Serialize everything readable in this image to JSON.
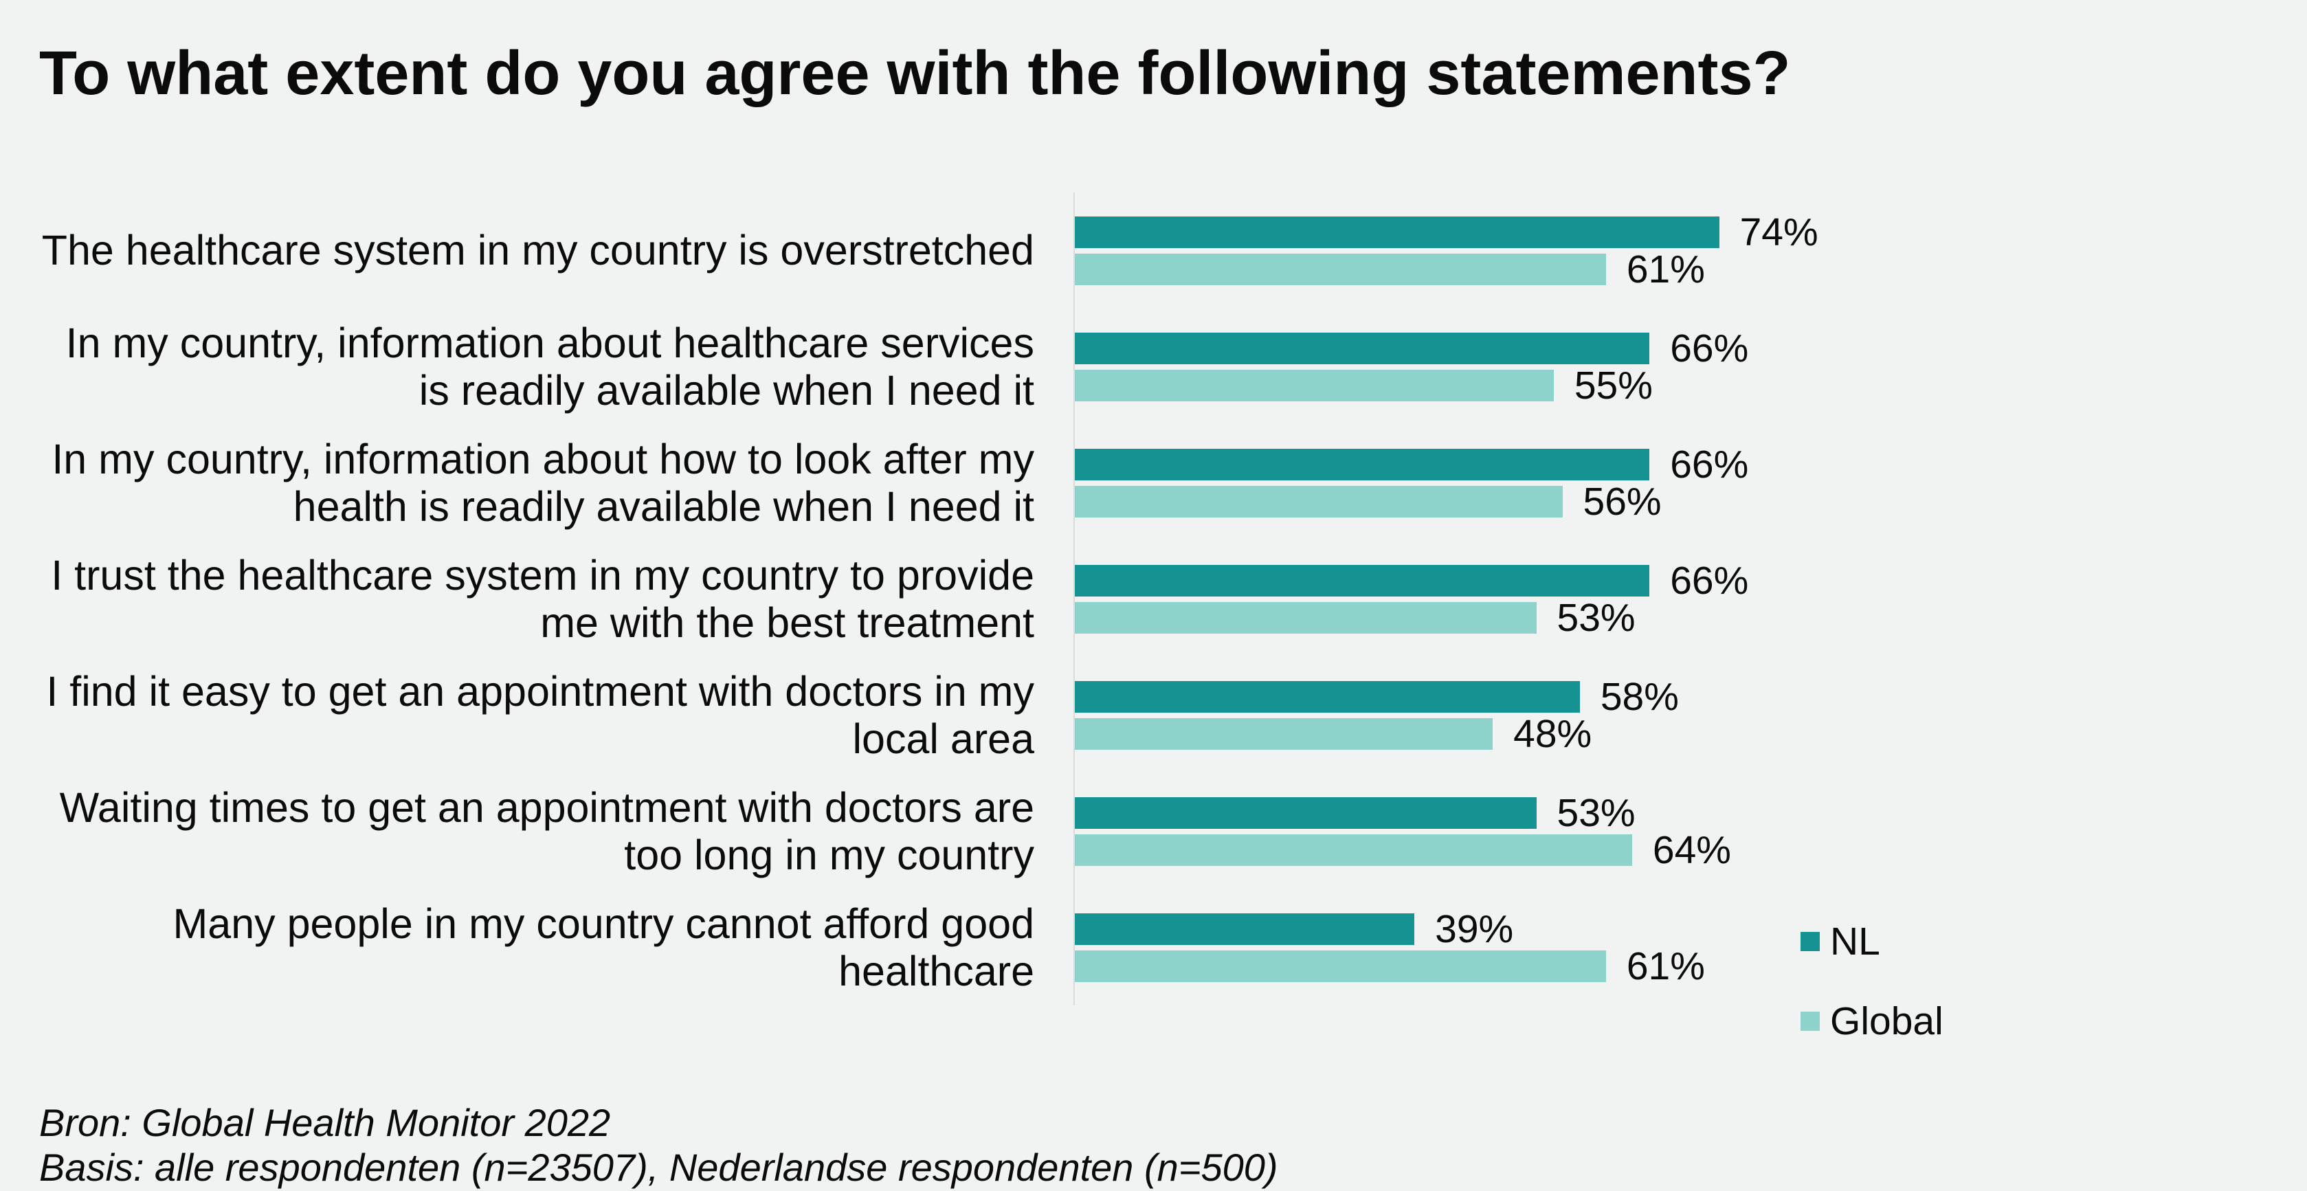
{
  "title": "To what extent do you agree with the following statements?",
  "chart_data": {
    "type": "bar",
    "orientation": "horizontal",
    "value_suffix": "%",
    "xlim": [
      0,
      100
    ],
    "grid": false,
    "legend_position": "bottom-right",
    "categories": [
      "The healthcare system in my country is overstretched",
      "In my country, information about healthcare services\nis readily available when I need it",
      "In my country, information about how to look after my\nhealth is readily available when I need it",
      "I trust the healthcare system in my country to provide\nme with the best treatment",
      "I find it easy to get an appointment with doctors in my\nlocal area",
      "Waiting times to get an appointment with doctors are\ntoo long in my country",
      "Many people in my country cannot afford good\nhealthcare"
    ],
    "series": [
      {
        "name": "NL",
        "color": "#159292",
        "values": [
          74,
          66,
          66,
          66,
          58,
          53,
          39
        ]
      },
      {
        "name": "Global",
        "color": "#8ED3CB",
        "values": [
          61,
          55,
          56,
          53,
          48,
          64,
          61
        ]
      }
    ]
  },
  "colors": {
    "background": "#F1F2F2",
    "axis_line": "#DBDBDB",
    "text": "#0b0b0b"
  },
  "footer": {
    "line1": "Bron: Global Health Monitor 2022",
    "line2": "Basis: alle respondenten (n=23507), Nederlandse respondenten (n=500)"
  }
}
